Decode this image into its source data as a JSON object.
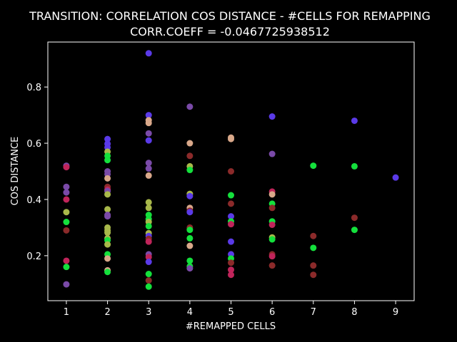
{
  "chart_data": {
    "type": "scatter",
    "title": "TRANSITION: CORRELATION COS DISTANCE - #CELLS FOR REMAPPING",
    "subtitle": "CORR.COEFF = -0.0467725938512",
    "xlabel": "#REMAPPED CELLS",
    "ylabel": "COS DISTANCE",
    "xlim": [
      0.55,
      9.45
    ],
    "ylim": [
      0.04,
      0.96
    ],
    "xticks": [
      1,
      2,
      3,
      4,
      5,
      6,
      7,
      8,
      9
    ],
    "yticks": [
      0.2,
      0.4,
      0.6,
      0.8
    ],
    "ytick_labels": [
      "0.2",
      "0.4",
      "0.6",
      "0.8"
    ],
    "grid": false,
    "background": "#000000",
    "points": [
      {
        "x": 1,
        "y": 0.52,
        "c": "#7a4aa8"
      },
      {
        "x": 1,
        "y": 0.515,
        "c": "#c0245a"
      },
      {
        "x": 1,
        "y": 0.445,
        "c": "#7a4aa8"
      },
      {
        "x": 1,
        "y": 0.425,
        "c": "#7a4aa8"
      },
      {
        "x": 1,
        "y": 0.4,
        "c": "#c0245a"
      },
      {
        "x": 1,
        "y": 0.355,
        "c": "#a8b84a"
      },
      {
        "x": 1,
        "y": 0.32,
        "c": "#14e03c"
      },
      {
        "x": 1,
        "y": 0.29,
        "c": "#8b2a2a"
      },
      {
        "x": 1,
        "y": 0.182,
        "c": "#c0245a"
      },
      {
        "x": 1,
        "y": 0.16,
        "c": "#14e03c"
      },
      {
        "x": 1,
        "y": 0.098,
        "c": "#7a4aa8"
      },
      {
        "x": 2,
        "y": 0.615,
        "c": "#5a3ae8"
      },
      {
        "x": 2,
        "y": 0.598,
        "c": "#5a3ae8"
      },
      {
        "x": 2,
        "y": 0.585,
        "c": "#5a3ae8"
      },
      {
        "x": 2,
        "y": 0.57,
        "c": "#a8b84a"
      },
      {
        "x": 2,
        "y": 0.555,
        "c": "#14e03c"
      },
      {
        "x": 2,
        "y": 0.54,
        "c": "#14e03c"
      },
      {
        "x": 2,
        "y": 0.5,
        "c": "#7a4aa8"
      },
      {
        "x": 2,
        "y": 0.49,
        "c": "#7a4aa8"
      },
      {
        "x": 2,
        "y": 0.475,
        "c": "#d9a88a"
      },
      {
        "x": 2,
        "y": 0.445,
        "c": "#8b2a2a"
      },
      {
        "x": 2,
        "y": 0.435,
        "c": "#c0245a"
      },
      {
        "x": 2,
        "y": 0.43,
        "c": "#7a4aa8"
      },
      {
        "x": 2,
        "y": 0.418,
        "c": "#a8b84a"
      },
      {
        "x": 2,
        "y": 0.365,
        "c": "#a8b84a"
      },
      {
        "x": 2,
        "y": 0.345,
        "c": "#7a4aa8"
      },
      {
        "x": 2,
        "y": 0.34,
        "c": "#7a4aa8"
      },
      {
        "x": 2,
        "y": 0.3,
        "c": "#a8b84a"
      },
      {
        "x": 2,
        "y": 0.29,
        "c": "#a8b84a"
      },
      {
        "x": 2,
        "y": 0.282,
        "c": "#a8b84a"
      },
      {
        "x": 2,
        "y": 0.262,
        "c": "#a8b84a"
      },
      {
        "x": 2,
        "y": 0.255,
        "c": "#14e03c"
      },
      {
        "x": 2,
        "y": 0.24,
        "c": "#a8b84a"
      },
      {
        "x": 2,
        "y": 0.205,
        "c": "#14e03c"
      },
      {
        "x": 2,
        "y": 0.19,
        "c": "#d9a88a"
      },
      {
        "x": 2,
        "y": 0.148,
        "c": "#d9a88a"
      },
      {
        "x": 2,
        "y": 0.142,
        "c": "#14e03c"
      },
      {
        "x": 3,
        "y": 0.92,
        "c": "#5a3ae8"
      },
      {
        "x": 3,
        "y": 0.7,
        "c": "#5a3ae8"
      },
      {
        "x": 3,
        "y": 0.682,
        "c": "#d9a88a"
      },
      {
        "x": 3,
        "y": 0.672,
        "c": "#d9a88a"
      },
      {
        "x": 3,
        "y": 0.635,
        "c": "#7a4aa8"
      },
      {
        "x": 3,
        "y": 0.61,
        "c": "#5a3ae8"
      },
      {
        "x": 3,
        "y": 0.53,
        "c": "#7a4aa8"
      },
      {
        "x": 3,
        "y": 0.51,
        "c": "#7a4aa8"
      },
      {
        "x": 3,
        "y": 0.485,
        "c": "#d9a88a"
      },
      {
        "x": 3,
        "y": 0.39,
        "c": "#a8b84a"
      },
      {
        "x": 3,
        "y": 0.37,
        "c": "#a8b84a"
      },
      {
        "x": 3,
        "y": 0.345,
        "c": "#14e03c"
      },
      {
        "x": 3,
        "y": 0.33,
        "c": "#14e03c"
      },
      {
        "x": 3,
        "y": 0.32,
        "c": "#a8b84a"
      },
      {
        "x": 3,
        "y": 0.305,
        "c": "#14e03c"
      },
      {
        "x": 3,
        "y": 0.28,
        "c": "#a8b84a"
      },
      {
        "x": 3,
        "y": 0.27,
        "c": "#5a3ae8"
      },
      {
        "x": 3,
        "y": 0.26,
        "c": "#8b2a2a"
      },
      {
        "x": 3,
        "y": 0.25,
        "c": "#c0245a"
      },
      {
        "x": 3,
        "y": 0.205,
        "c": "#7a4aa8"
      },
      {
        "x": 3,
        "y": 0.195,
        "c": "#c0245a"
      },
      {
        "x": 3,
        "y": 0.178,
        "c": "#5a3ae8"
      },
      {
        "x": 3,
        "y": 0.135,
        "c": "#14e03c"
      },
      {
        "x": 3,
        "y": 0.112,
        "c": "#8b2a2a"
      },
      {
        "x": 3,
        "y": 0.09,
        "c": "#14e03c"
      },
      {
        "x": 4,
        "y": 0.73,
        "c": "#7a4aa8"
      },
      {
        "x": 4,
        "y": 0.6,
        "c": "#d9a88a"
      },
      {
        "x": 4,
        "y": 0.555,
        "c": "#8b2a2a"
      },
      {
        "x": 4,
        "y": 0.518,
        "c": "#a8b84a"
      },
      {
        "x": 4,
        "y": 0.505,
        "c": "#14e03c"
      },
      {
        "x": 4,
        "y": 0.42,
        "c": "#a8b84a"
      },
      {
        "x": 4,
        "y": 0.412,
        "c": "#5a3ae8"
      },
      {
        "x": 4,
        "y": 0.37,
        "c": "#d9a88a"
      },
      {
        "x": 4,
        "y": 0.36,
        "c": "#8b2a2a"
      },
      {
        "x": 4,
        "y": 0.355,
        "c": "#5a3ae8"
      },
      {
        "x": 4,
        "y": 0.3,
        "c": "#8b2a2a"
      },
      {
        "x": 4,
        "y": 0.292,
        "c": "#14e03c"
      },
      {
        "x": 4,
        "y": 0.262,
        "c": "#14e03c"
      },
      {
        "x": 4,
        "y": 0.235,
        "c": "#d9a88a"
      },
      {
        "x": 4,
        "y": 0.182,
        "c": "#14e03c"
      },
      {
        "x": 4,
        "y": 0.162,
        "c": "#14e03c"
      },
      {
        "x": 4,
        "y": 0.155,
        "c": "#7a4aa8"
      },
      {
        "x": 5,
        "y": 0.62,
        "c": "#d9a88a"
      },
      {
        "x": 5,
        "y": 0.615,
        "c": "#d9a88a"
      },
      {
        "x": 5,
        "y": 0.5,
        "c": "#8b2a2a"
      },
      {
        "x": 5,
        "y": 0.415,
        "c": "#14e03c"
      },
      {
        "x": 5,
        "y": 0.385,
        "c": "#8b2a2a"
      },
      {
        "x": 5,
        "y": 0.34,
        "c": "#5a3ae8"
      },
      {
        "x": 5,
        "y": 0.322,
        "c": "#14e03c"
      },
      {
        "x": 5,
        "y": 0.312,
        "c": "#c0245a"
      },
      {
        "x": 5,
        "y": 0.25,
        "c": "#5a3ae8"
      },
      {
        "x": 5,
        "y": 0.205,
        "c": "#5a3ae8"
      },
      {
        "x": 5,
        "y": 0.19,
        "c": "#14e03c"
      },
      {
        "x": 5,
        "y": 0.175,
        "c": "#8b2a2a"
      },
      {
        "x": 5,
        "y": 0.15,
        "c": "#c0245a"
      },
      {
        "x": 5,
        "y": 0.132,
        "c": "#c0245a"
      },
      {
        "x": 6,
        "y": 0.695,
        "c": "#5a3ae8"
      },
      {
        "x": 6,
        "y": 0.562,
        "c": "#7a4aa8"
      },
      {
        "x": 6,
        "y": 0.428,
        "c": "#c0245a"
      },
      {
        "x": 6,
        "y": 0.418,
        "c": "#d9a88a"
      },
      {
        "x": 6,
        "y": 0.385,
        "c": "#14e03c"
      },
      {
        "x": 6,
        "y": 0.37,
        "c": "#8b2a2a"
      },
      {
        "x": 6,
        "y": 0.322,
        "c": "#14e03c"
      },
      {
        "x": 6,
        "y": 0.31,
        "c": "#c0245a"
      },
      {
        "x": 6,
        "y": 0.265,
        "c": "#a8b84a"
      },
      {
        "x": 6,
        "y": 0.258,
        "c": "#14e03c"
      },
      {
        "x": 6,
        "y": 0.205,
        "c": "#8b2a2a"
      },
      {
        "x": 6,
        "y": 0.198,
        "c": "#c0245a"
      },
      {
        "x": 6,
        "y": 0.165,
        "c": "#8b2a2a"
      },
      {
        "x": 7,
        "y": 0.52,
        "c": "#14e03c"
      },
      {
        "x": 7,
        "y": 0.27,
        "c": "#8b2a2a"
      },
      {
        "x": 7,
        "y": 0.228,
        "c": "#14e03c"
      },
      {
        "x": 7,
        "y": 0.165,
        "c": "#8b2a2a"
      },
      {
        "x": 7,
        "y": 0.132,
        "c": "#8b2a2a"
      },
      {
        "x": 8,
        "y": 0.68,
        "c": "#5a3ae8"
      },
      {
        "x": 8,
        "y": 0.518,
        "c": "#14e03c"
      },
      {
        "x": 8,
        "y": 0.335,
        "c": "#8b2a2a"
      },
      {
        "x": 8,
        "y": 0.292,
        "c": "#14e03c"
      },
      {
        "x": 9,
        "y": 0.478,
        "c": "#5a3ae8"
      }
    ]
  }
}
